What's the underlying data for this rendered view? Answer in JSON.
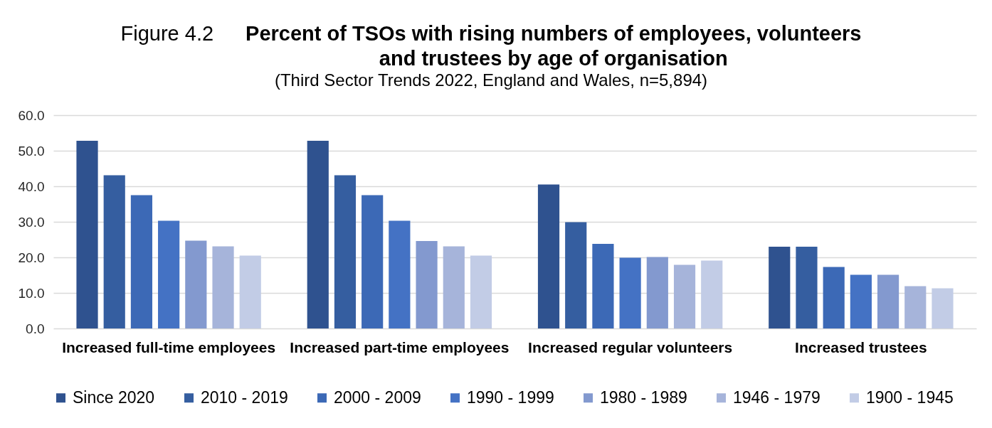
{
  "chart_data": {
    "type": "bar",
    "title": "Percent of TSOs with rising numbers of employees, volunteers and trustees by age of organisation",
    "subtitle": "(Third Sector Trends 2022, England and Wales, n=5,894)",
    "annotations": [
      "Figure 4.2"
    ],
    "categories": [
      "Increased full-time employees",
      "Increased part-time employees",
      "Increased regular volunteers",
      "Increased trustees"
    ],
    "series": [
      {
        "name": "Since 2020",
        "color": "#2f528f",
        "values": [
          52.8,
          52.8,
          40.5,
          23.0
        ]
      },
      {
        "name": "2010 - 2019",
        "color": "#355ea0",
        "values": [
          43.1,
          43.1,
          29.9,
          23.0
        ]
      },
      {
        "name": "2000 - 2009",
        "color": "#3c69b6",
        "values": [
          37.5,
          37.5,
          23.8,
          17.3
        ]
      },
      {
        "name": "1990 - 1999",
        "color": "#4472c4",
        "values": [
          30.3,
          30.3,
          19.9,
          15.1
        ]
      },
      {
        "name": "1980 - 1989",
        "color": "#8399cf",
        "values": [
          24.7,
          24.6,
          20.1,
          15.1
        ]
      },
      {
        "name": "1946 - 1979",
        "color": "#a6b4da",
        "values": [
          23.1,
          23.1,
          17.9,
          11.9
        ]
      },
      {
        "name": "1900 - 1945",
        "color": "#c2cce6",
        "values": [
          20.5,
          20.5,
          19.1,
          11.3
        ]
      }
    ],
    "ylim": [
      0,
      60
    ],
    "yticks": [
      {
        "value": 0,
        "label": "0.0"
      },
      {
        "value": 10,
        "label": "10.0"
      },
      {
        "value": 20,
        "label": "20.0"
      },
      {
        "value": 30,
        "label": "30.0"
      },
      {
        "value": 40,
        "label": "40.0"
      },
      {
        "value": 50,
        "label": "50.0"
      },
      {
        "value": 60,
        "label": "60.0"
      }
    ],
    "grid": "y",
    "legend": "bottom"
  }
}
